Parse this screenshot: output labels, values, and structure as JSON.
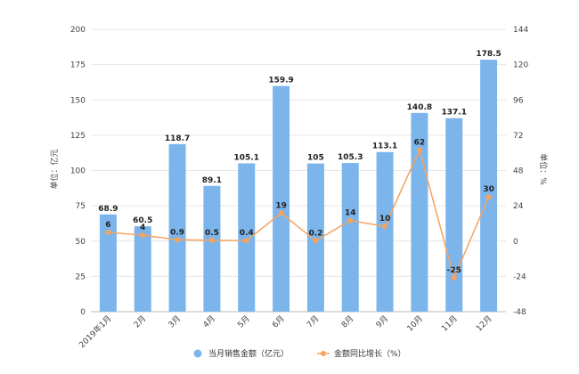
{
  "chart_data": {
    "type": "bar",
    "categories": [
      "2019年1月",
      "2月",
      "3月",
      "4月",
      "5月",
      "6月",
      "7月",
      "8月",
      "9月",
      "10月",
      "11月",
      "12月"
    ],
    "series": [
      {
        "name": "当月销售金额（亿元）",
        "type": "bar",
        "axis": "left",
        "color": "#7cb5ec",
        "values": [
          68.9,
          60.5,
          118.7,
          89.1,
          105.1,
          159.9,
          105,
          105.3,
          113.1,
          140.8,
          137.1,
          178.5
        ],
        "labels": [
          "68.9",
          "60.5",
          "118.7",
          "89.1",
          "105.1",
          "159.9",
          "105",
          "105.3",
          "113.1",
          "140.8",
          "137.1",
          "178.5"
        ]
      },
      {
        "name": "金额同比增长（%）",
        "type": "line",
        "axis": "right",
        "color": "#f4a460",
        "values": [
          6,
          4,
          0.9,
          0.5,
          0.4,
          19,
          0.2,
          14,
          10,
          62,
          -25,
          30
        ],
        "labels": [
          "6",
          "4",
          "0.9",
          "0.5",
          "0.4",
          "19",
          "0.2",
          "14",
          "10",
          "62",
          "-25",
          "30"
        ]
      }
    ],
    "yaxis_left": {
      "label": "单位：亿元",
      "min": 0,
      "max": 200,
      "ticks": [
        0,
        25,
        50,
        75,
        100,
        125,
        150,
        175,
        200
      ]
    },
    "yaxis_right": {
      "label": "单位：%",
      "min": -48,
      "max": 144,
      "ticks": [
        -48,
        -24,
        0,
        24,
        48,
        72,
        96,
        120,
        144
      ]
    },
    "grid": true,
    "legend": "bottom-center"
  }
}
